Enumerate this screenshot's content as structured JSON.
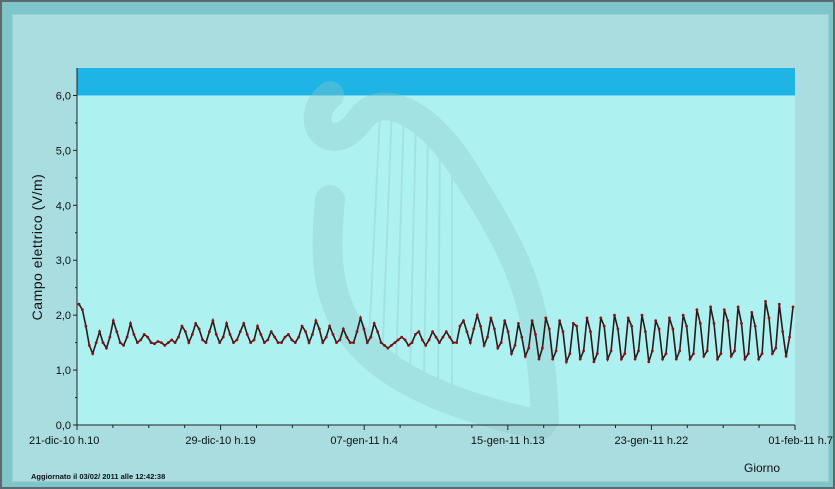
{
  "chart_data": {
    "type": "line",
    "ylabel": "Campo elettrico (V/m)",
    "xlabel": "Giorno",
    "footer": "Aggiornato il 03/02/ 2011 alle 12:42:38",
    "ylim": [
      0,
      6.5
    ],
    "y_ticks": [
      0,
      1,
      2,
      3,
      4,
      5,
      6
    ],
    "y_tick_labels": [
      "0,0",
      "1,0",
      "2,0",
      "3,0",
      "4,0",
      "5,0",
      "6,0"
    ],
    "x_tick_labels": [
      "21-dic-10 h.10",
      "29-dic-10 h.19",
      "07-gen-11 h.4",
      "15-gen-11 h.13",
      "23-gen-11 h.22",
      "01-feb-11 h.7"
    ],
    "limit_band": {
      "from": 6.0,
      "to": 6.5,
      "color": "#1fb4e6"
    },
    "series": [
      {
        "color": "#2a1a1a",
        "marker_color": "#8b1010",
        "values": [
          2.2,
          2.1,
          1.8,
          1.45,
          1.3,
          1.5,
          1.7,
          1.5,
          1.4,
          1.6,
          1.9,
          1.7,
          1.5,
          1.45,
          1.6,
          1.85,
          1.65,
          1.5,
          1.55,
          1.65,
          1.6,
          1.5,
          1.48,
          1.52,
          1.5,
          1.45,
          1.5,
          1.55,
          1.5,
          1.6,
          1.8,
          1.7,
          1.5,
          1.65,
          1.85,
          1.75,
          1.55,
          1.5,
          1.7,
          1.9,
          1.65,
          1.5,
          1.6,
          1.85,
          1.65,
          1.5,
          1.55,
          1.7,
          1.85,
          1.65,
          1.5,
          1.55,
          1.8,
          1.65,
          1.5,
          1.55,
          1.7,
          1.6,
          1.5,
          1.5,
          1.6,
          1.65,
          1.55,
          1.5,
          1.6,
          1.8,
          1.7,
          1.5,
          1.65,
          1.9,
          1.75,
          1.5,
          1.6,
          1.8,
          1.65,
          1.5,
          1.55,
          1.75,
          1.6,
          1.5,
          1.5,
          1.7,
          1.95,
          1.75,
          1.5,
          1.6,
          1.85,
          1.7,
          1.5,
          1.45,
          1.4,
          1.45,
          1.5,
          1.55,
          1.6,
          1.55,
          1.45,
          1.5,
          1.65,
          1.7,
          1.55,
          1.45,
          1.55,
          1.7,
          1.6,
          1.5,
          1.6,
          1.7,
          1.6,
          1.5,
          1.5,
          1.8,
          1.9,
          1.7,
          1.5,
          1.75,
          2.0,
          1.8,
          1.45,
          1.6,
          1.95,
          1.75,
          1.4,
          1.5,
          1.9,
          1.7,
          1.3,
          1.45,
          1.85,
          1.6,
          1.25,
          1.4,
          1.9,
          1.65,
          1.2,
          1.4,
          1.95,
          1.75,
          1.2,
          1.35,
          1.9,
          1.7,
          1.15,
          1.3,
          1.85,
          1.8,
          1.2,
          1.35,
          1.95,
          1.7,
          1.15,
          1.3,
          1.95,
          1.8,
          1.2,
          1.35,
          2.0,
          1.75,
          1.2,
          1.3,
          1.95,
          1.8,
          1.2,
          1.35,
          2.0,
          1.7,
          1.15,
          1.35,
          1.9,
          1.75,
          1.2,
          1.3,
          1.95,
          1.75,
          1.2,
          1.35,
          2.0,
          1.8,
          1.2,
          1.3,
          2.1,
          1.85,
          1.25,
          1.35,
          2.15,
          1.85,
          1.2,
          1.3,
          2.1,
          1.9,
          1.25,
          1.35,
          2.15,
          1.85,
          1.2,
          1.3,
          2.05,
          1.8,
          1.2,
          1.3,
          2.25,
          1.95,
          1.3,
          1.4,
          2.2,
          1.7,
          1.25,
          1.6,
          2.15
        ]
      }
    ]
  }
}
